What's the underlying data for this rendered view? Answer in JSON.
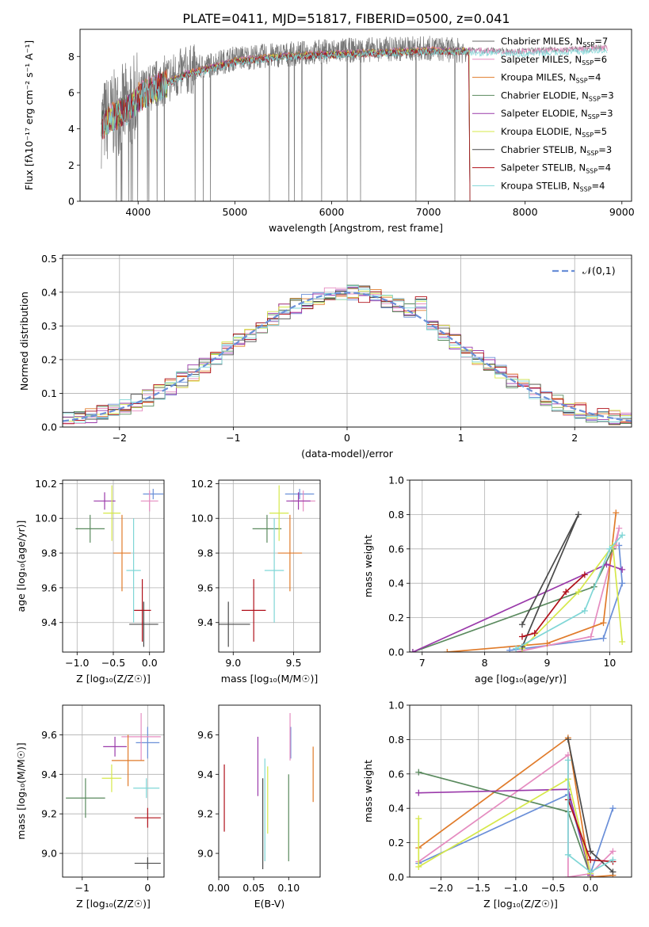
{
  "title": "PLATE=0411, MJD=51817, FIBERID=0500, z=0.041",
  "series_colors": [
    "#6a6a6a",
    "#e58cc0",
    "#e07b2a",
    "#5a8a5e",
    "#9a3aaa",
    "#d6e84a",
    "#4a4a4a",
    "#b0101a",
    "#7fd6d6"
  ],
  "chart_data": [
    {
      "type": "line",
      "id": "spectrum",
      "xlabel": "wavelength [Angstrom, rest frame]",
      "ylabel": "Flux [fλ10⁻¹⁷ erg cm⁻² s⁻¹ A⁻¹]",
      "xlim": [
        3400,
        9100
      ],
      "ylim": [
        0,
        9.5
      ],
      "xticks": [
        4000,
        5000,
        6000,
        7000,
        8000,
        9000
      ],
      "yticks": [
        0,
        2,
        4,
        6,
        8
      ],
      "grid": false,
      "legend_position": "top-right",
      "legend": [
        "Chabrier MILES, N_SSP=7",
        "Salpeter MILES, N_SSP=6",
        "Kroupa MILES, N_SSP=4",
        "Chabrier ELODIE, N_SSP=3",
        "Salpeter ELODIE, N_SSP=3",
        "Kroupa ELODIE, N_SSP=5",
        "Chabrier STELIB, N_SSP=3",
        "Salpeter STELIB, N_SSP=4",
        "Kroupa STELIB, N_SSP=4"
      ],
      "data_curve": {
        "x": [
          3620,
          3700,
          3800,
          3900,
          4000,
          4200,
          4500,
          5000,
          5500,
          6000,
          6500,
          7000,
          7400
        ],
        "y": [
          4.3,
          4.6,
          5.0,
          5.3,
          5.8,
          6.5,
          7.2,
          7.9,
          8.1,
          8.3,
          8.4,
          8.45,
          8.3
        ]
      },
      "model_curve": {
        "x": [
          3620,
          3700,
          3800,
          3900,
          4000,
          4200,
          4500,
          5000,
          5500,
          6000,
          6500,
          7000,
          7500,
          8000,
          8500,
          8850
        ],
        "y": [
          4.3,
          4.6,
          4.9,
          5.2,
          5.8,
          6.4,
          7.1,
          7.8,
          8.1,
          8.2,
          8.3,
          8.4,
          8.35,
          8.3,
          8.4,
          8.5
        ]
      }
    },
    {
      "type": "line",
      "id": "residuals",
      "xlabel": "(data-model)/error",
      "ylabel": "Normed distribution",
      "xlim": [
        -2.5,
        2.5
      ],
      "ylim": [
        0,
        0.51
      ],
      "xticks": [
        -2,
        -1,
        0,
        1,
        2
      ],
      "yticks": [
        0.0,
        0.1,
        0.2,
        0.3,
        0.4,
        0.5
      ],
      "grid": true,
      "legend_position": "top-right",
      "legend": [
        "𝒩(0,1)"
      ],
      "bin_width": 0.1
    },
    {
      "type": "scatter",
      "id": "age-vs-z",
      "xlabel": "Z [log₁₀(Z/Z☉)]",
      "ylabel": "age  [log₁₀(age/yr)]",
      "xlim": [
        -1.2,
        0.2
      ],
      "ylim": [
        9.23,
        10.22
      ],
      "xticks": [
        -1,
        -0.5,
        0
      ],
      "yticks": [
        9.4,
        9.6,
        9.8,
        10.0,
        10.2
      ],
      "grid": true,
      "points": [
        {
          "x": 0.05,
          "xerr": 0.14,
          "y": 10.14,
          "yerr": 0.03,
          "color": "#6a8fd8"
        },
        {
          "x": 0.0,
          "xerr": 0.12,
          "y": 10.1,
          "yerr": 0.06,
          "color": "#e58cc0"
        },
        {
          "x": -0.38,
          "xerr": 0.12,
          "y": 9.8,
          "yerr": 0.22,
          "color": "#e07b2a"
        },
        {
          "x": -0.82,
          "xerr": 0.2,
          "y": 9.94,
          "yerr": 0.08,
          "color": "#5a8a5e"
        },
        {
          "x": -0.62,
          "xerr": 0.15,
          "y": 10.1,
          "yerr": 0.05,
          "color": "#9a3aaa"
        },
        {
          "x": -0.52,
          "xerr": 0.12,
          "y": 10.03,
          "yerr": 0.16,
          "color": "#d6e84a"
        },
        {
          "x": -0.08,
          "xerr": 0.2,
          "y": 9.39,
          "yerr": 0.13,
          "color": "#4a4a4a"
        },
        {
          "x": -0.1,
          "xerr": 0.12,
          "y": 9.47,
          "yerr": 0.18,
          "color": "#b0101a"
        },
        {
          "x": -0.22,
          "xerr": 0.1,
          "y": 9.7,
          "yerr": 0.3,
          "color": "#7fd6d6"
        }
      ]
    },
    {
      "type": "scatter",
      "id": "age-vs-mass",
      "xlabel": "mass [log₁₀(M/M☉)]",
      "ylabel": "",
      "xlim": [
        8.88,
        9.72
      ],
      "ylim": [
        9.23,
        10.22
      ],
      "xticks": [
        9.0,
        9.5
      ],
      "yticks": [
        9.4,
        9.6,
        9.8,
        10.0,
        10.2
      ],
      "grid": true,
      "points": [
        {
          "x": 9.55,
          "xerr": 0.12,
          "y": 10.14,
          "yerr": 0.03,
          "color": "#6a8fd8"
        },
        {
          "x": 9.58,
          "xerr": 0.1,
          "y": 10.1,
          "yerr": 0.06,
          "color": "#e58cc0"
        },
        {
          "x": 9.47,
          "xerr": 0.1,
          "y": 9.8,
          "yerr": 0.22,
          "color": "#e07b2a"
        },
        {
          "x": 9.28,
          "xerr": 0.12,
          "y": 9.94,
          "yerr": 0.08,
          "color": "#5a8a5e"
        },
        {
          "x": 9.54,
          "xerr": 0.1,
          "y": 10.1,
          "yerr": 0.05,
          "color": "#9a3aaa"
        },
        {
          "x": 9.38,
          "xerr": 0.08,
          "y": 10.03,
          "yerr": 0.16,
          "color": "#d6e84a"
        },
        {
          "x": 8.96,
          "xerr": 0.18,
          "y": 9.39,
          "yerr": 0.13,
          "color": "#4a4a4a"
        },
        {
          "x": 9.17,
          "xerr": 0.1,
          "y": 9.47,
          "yerr": 0.18,
          "color": "#b0101a"
        },
        {
          "x": 9.34,
          "xerr": 0.08,
          "y": 9.7,
          "yerr": 0.3,
          "color": "#7fd6d6"
        }
      ]
    },
    {
      "type": "line",
      "id": "massweight-vs-age",
      "xlabel": "age  [log₁₀(age/yr)]",
      "ylabel": "mass weight",
      "xlim": [
        6.8,
        10.35
      ],
      "ylim": [
        0,
        1.0
      ],
      "xticks": [
        7,
        8,
        9,
        10
      ],
      "yticks": [
        0.0,
        0.2,
        0.4,
        0.6,
        0.8,
        1.0
      ],
      "grid": true,
      "series": [
        {
          "color": "#6a8fd8",
          "x": [
            8.4,
            9.9,
            10.2,
            10.15
          ],
          "y": [
            0.01,
            0.08,
            0.4,
            0.62
          ]
        },
        {
          "color": "#e58cc0",
          "x": [
            8.5,
            9.7,
            10.15,
            10.1
          ],
          "y": [
            0.0,
            0.09,
            0.72,
            0.62
          ]
        },
        {
          "color": "#e07b2a",
          "x": [
            7.4,
            9.0,
            9.9,
            10.1
          ],
          "y": [
            0.0,
            0.05,
            0.17,
            0.81
          ]
        },
        {
          "color": "#5a8a5e",
          "x": [
            6.85,
            9.75,
            10.05
          ],
          "y": [
            0.0,
            0.38,
            0.6
          ]
        },
        {
          "color": "#9a3aaa",
          "x": [
            6.85,
            9.95,
            10.2
          ],
          "y": [
            0.0,
            0.51,
            0.48
          ]
        },
        {
          "color": "#d6e84a",
          "x": [
            8.6,
            9.5,
            10.05,
            10.2
          ],
          "y": [
            0.02,
            0.35,
            0.62,
            0.06
          ]
        },
        {
          "color": "#4a4a4a",
          "x": [
            8.6,
            9.5,
            8.6
          ],
          "y": [
            0.03,
            0.8,
            0.16
          ]
        },
        {
          "color": "#b0101a",
          "x": [
            8.6,
            8.8,
            9.3,
            9.6
          ],
          "y": [
            0.09,
            0.11,
            0.35,
            0.45
          ]
        },
        {
          "color": "#7fd6d6",
          "x": [
            8.5,
            9.6,
            10.0,
            10.2
          ],
          "y": [
            0.02,
            0.24,
            0.6,
            0.68
          ]
        }
      ]
    },
    {
      "type": "scatter",
      "id": "mass-vs-z",
      "xlabel": "Z [log₁₀(Z/Z☉)]",
      "ylabel": "mass [log₁₀(M/M☉)]",
      "xlim": [
        -1.3,
        0.25
      ],
      "ylim": [
        8.88,
        9.75
      ],
      "xticks": [
        -1,
        0
      ],
      "yticks": [
        9.0,
        9.2,
        9.4,
        9.6
      ],
      "grid": true,
      "points": [
        {
          "x": 0.0,
          "xerr": 0.18,
          "y": 9.56,
          "yerr": 0.08,
          "color": "#6a8fd8"
        },
        {
          "x": -0.1,
          "xerr": 0.3,
          "y": 9.59,
          "yerr": 0.12,
          "color": "#e58cc0"
        },
        {
          "x": -0.3,
          "xerr": 0.25,
          "y": 9.47,
          "yerr": 0.13,
          "color": "#e07b2a"
        },
        {
          "x": -0.95,
          "xerr": 0.3,
          "y": 9.28,
          "yerr": 0.1,
          "color": "#5a8a5e"
        },
        {
          "x": -0.5,
          "xerr": 0.18,
          "y": 9.54,
          "yerr": 0.05,
          "color": "#9a3aaa"
        },
        {
          "x": -0.55,
          "xerr": 0.15,
          "y": 9.38,
          "yerr": 0.07,
          "color": "#d6e84a"
        },
        {
          "x": 0.0,
          "xerr": 0.2,
          "y": 8.95,
          "yerr": 0.03,
          "color": "#4a4a4a"
        },
        {
          "x": 0.0,
          "xerr": 0.2,
          "y": 9.18,
          "yerr": 0.05,
          "color": "#b0101a"
        },
        {
          "x": -0.02,
          "xerr": 0.2,
          "y": 9.33,
          "yerr": 0.05,
          "color": "#7fd6d6"
        }
      ]
    },
    {
      "type": "scatter",
      "id": "mass-vs-ebv",
      "xlabel": "E(B-V)",
      "ylabel": "",
      "xlim": [
        0.0,
        0.145
      ],
      "ylim": [
        8.88,
        9.75
      ],
      "xticks": [
        0.0,
        0.05,
        0.1
      ],
      "yticks": [
        9.0,
        9.2,
        9.4,
        9.6
      ],
      "grid": false,
      "points": [
        {
          "x": 0.103,
          "y": 9.56,
          "yerr": 0.08,
          "color": "#6a8fd8"
        },
        {
          "x": 0.102,
          "y": 9.59,
          "yerr": 0.12,
          "color": "#e58cc0"
        },
        {
          "x": 0.135,
          "y": 9.4,
          "yerr": 0.14,
          "color": "#e07b2a"
        },
        {
          "x": 0.1,
          "y": 9.18,
          "yerr": 0.22,
          "color": "#5a8a5e"
        },
        {
          "x": 0.056,
          "y": 9.44,
          "yerr": 0.15,
          "color": "#9a3aaa"
        },
        {
          "x": 0.07,
          "y": 9.27,
          "yerr": 0.17,
          "color": "#d6e84a"
        },
        {
          "x": 0.063,
          "y": 9.15,
          "yerr": 0.23,
          "color": "#4a4a4a"
        },
        {
          "x": 0.008,
          "y": 9.28,
          "yerr": 0.17,
          "color": "#b0101a"
        },
        {
          "x": 0.066,
          "y": 9.22,
          "yerr": 0.26,
          "color": "#7fd6d6"
        }
      ]
    },
    {
      "type": "line",
      "id": "massweight-vs-z",
      "xlabel": "Z [log₁₀(Z/Z☉)]",
      "ylabel": "mass weight",
      "xlim": [
        -2.42,
        0.55
      ],
      "ylim": [
        0,
        1.0
      ],
      "xticks": [
        -2.0,
        -1.5,
        -1.0,
        -0.5,
        0.0
      ],
      "yticks": [
        0.0,
        0.2,
        0.4,
        0.6,
        0.8,
        1.0
      ],
      "grid": true,
      "series": [
        {
          "color": "#6a8fd8",
          "x": [
            -2.3,
            -0.3,
            0.0,
            0.3
          ],
          "y": [
            0.08,
            0.48,
            0.02,
            0.4
          ]
        },
        {
          "color": "#e58cc0",
          "x": [
            -2.3,
            -0.3,
            -0.3,
            0.0,
            0.3
          ],
          "y": [
            0.09,
            0.71,
            0.0,
            0.02,
            0.15
          ]
        },
        {
          "color": "#e07b2a",
          "x": [
            -2.3,
            -0.3,
            0.0,
            0.3
          ],
          "y": [
            0.17,
            0.81,
            0.0,
            0.01
          ]
        },
        {
          "color": "#5a8a5e",
          "x": [
            -2.3,
            -0.3,
            0.0
          ],
          "y": [
            0.61,
            0.38,
            0.01
          ]
        },
        {
          "color": "#9a3aaa",
          "x": [
            -2.3,
            -0.3,
            0.0
          ],
          "y": [
            0.49,
            0.51,
            0.01
          ]
        },
        {
          "color": "#d6e84a",
          "x": [
            -2.3,
            -2.3,
            -0.3,
            0.0
          ],
          "y": [
            0.34,
            0.06,
            0.57,
            0.02
          ]
        },
        {
          "color": "#4a4a4a",
          "x": [
            -0.3,
            0.0,
            0.3
          ],
          "y": [
            0.8,
            0.15,
            0.03
          ]
        },
        {
          "color": "#b0101a",
          "x": [
            -0.3,
            0.0,
            0.3
          ],
          "y": [
            0.45,
            0.1,
            0.09
          ]
        },
        {
          "color": "#7fd6d6",
          "x": [
            -0.3,
            -0.3,
            0.0,
            0.3
          ],
          "y": [
            0.68,
            0.13,
            0.03,
            0.1
          ]
        }
      ]
    }
  ]
}
